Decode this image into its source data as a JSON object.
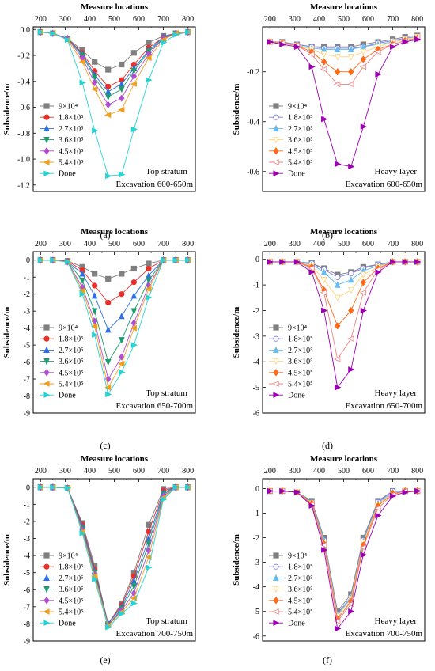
{
  "colors": {
    "9e4": "#808080",
    "1.8e5": "#e8302a",
    "2.7e5": "#2f6fe0",
    "3.6e5": "#1e9c6e",
    "4.5e5": "#b04fcf",
    "5.4e5": "#f0a020",
    "Done": "#27d3d3",
    "4.5e5_b": "#ff6b18",
    "5.4e5_b": "#f08080",
    "Done_b": "#9b00b0",
    "3.6e5_b": "#ffd27a",
    "1.8e5_b": "#7a7adf",
    "2.7e5_b": "#66bbf0"
  },
  "legend_labels": [
    "9×10⁴",
    "1.8×10⁵",
    "2.7×10⁵",
    "3.6×10⁵",
    "4.5×10⁵",
    "5.4×10⁵",
    "Done"
  ],
  "captions": [
    "(a)",
    "(b)",
    "(c)",
    "(d)",
    "(e)",
    "(f)"
  ],
  "chart_data": [
    {
      "type": "line",
      "panel": "a",
      "xlabel": "Measure locations",
      "ylabel": "Subsidence/m",
      "note1": "Top stratum",
      "note2": "Excavation 600-650m",
      "xticks": [
        200,
        300,
        400,
        500,
        600,
        700,
        800
      ],
      "yticks": [
        0.0,
        -0.2,
        -0.4,
        -0.6,
        -0.8,
        -1.0,
        -1.2
      ],
      "xlim": [
        170,
        830
      ],
      "ylim": [
        -1.25,
        0.02
      ],
      "x": [
        200,
        250,
        310,
        370,
        420,
        475,
        530,
        580,
        640,
        700,
        750,
        800
      ],
      "series": [
        {
          "name": "9×10⁴",
          "values": [
            -0.02,
            -0.03,
            -0.07,
            -0.16,
            -0.25,
            -0.31,
            -0.27,
            -0.18,
            -0.1,
            -0.05,
            -0.03,
            -0.02
          ]
        },
        {
          "name": "1.8×10⁵",
          "values": [
            -0.02,
            -0.03,
            -0.07,
            -0.18,
            -0.32,
            -0.44,
            -0.39,
            -0.27,
            -0.14,
            -0.06,
            -0.03,
            -0.02
          ]
        },
        {
          "name": "2.7×10⁵",
          "values": [
            -0.02,
            -0.03,
            -0.07,
            -0.19,
            -0.35,
            -0.48,
            -0.42,
            -0.3,
            -0.16,
            -0.06,
            -0.03,
            -0.02
          ]
        },
        {
          "name": "3.6×10⁵",
          "values": [
            -0.02,
            -0.03,
            -0.07,
            -0.2,
            -0.37,
            -0.52,
            -0.46,
            -0.32,
            -0.17,
            -0.07,
            -0.03,
            -0.02
          ]
        },
        {
          "name": "4.5×10⁵",
          "values": [
            -0.02,
            -0.03,
            -0.07,
            -0.22,
            -0.41,
            -0.58,
            -0.53,
            -0.36,
            -0.19,
            -0.07,
            -0.03,
            -0.02
          ]
        },
        {
          "name": "5.4×10⁵",
          "values": [
            -0.02,
            -0.03,
            -0.08,
            -0.25,
            -0.46,
            -0.66,
            -0.62,
            -0.42,
            -0.22,
            -0.08,
            -0.03,
            -0.02
          ]
        },
        {
          "name": "Done",
          "values": [
            -0.02,
            -0.03,
            -0.08,
            -0.41,
            -0.78,
            -1.13,
            -1.12,
            -0.77,
            -0.39,
            -0.1,
            -0.04,
            -0.02
          ]
        }
      ]
    },
    {
      "type": "line",
      "panel": "b",
      "xlabel": "Measure locations",
      "ylabel": "Subsidence/m",
      "note1": "Heavy layer",
      "note2": "Excavation 600-650m",
      "xticks": [
        200,
        300,
        400,
        500,
        600,
        700,
        800
      ],
      "yticks": [
        -0.2,
        -0.4,
        -0.6
      ],
      "xlim": [
        170,
        830
      ],
      "ylim": [
        -0.68,
        -0.02
      ],
      "x": [
        200,
        250,
        310,
        370,
        420,
        475,
        530,
        580,
        640,
        700,
        750,
        800
      ],
      "series": [
        {
          "name": "9×10⁴",
          "values": [
            -0.08,
            -0.08,
            -0.09,
            -0.1,
            -0.1,
            -0.1,
            -0.1,
            -0.09,
            -0.08,
            -0.07,
            -0.06,
            -0.055
          ]
        },
        {
          "name": "1.8×10⁵",
          "values": [
            -0.08,
            -0.085,
            -0.09,
            -0.1,
            -0.105,
            -0.105,
            -0.105,
            -0.1,
            -0.085,
            -0.075,
            -0.065,
            -0.06
          ]
        },
        {
          "name": "2.7×10⁵",
          "values": [
            -0.08,
            -0.085,
            -0.095,
            -0.105,
            -0.11,
            -0.11,
            -0.11,
            -0.1,
            -0.09,
            -0.08,
            -0.07,
            -0.06
          ]
        },
        {
          "name": "3.6×10⁵",
          "values": [
            -0.08,
            -0.085,
            -0.095,
            -0.11,
            -0.13,
            -0.14,
            -0.14,
            -0.12,
            -0.1,
            -0.08,
            -0.07,
            -0.06
          ]
        },
        {
          "name": "4.5×10⁵",
          "values": [
            -0.08,
            -0.085,
            -0.095,
            -0.12,
            -0.16,
            -0.2,
            -0.2,
            -0.15,
            -0.11,
            -0.09,
            -0.075,
            -0.065
          ]
        },
        {
          "name": "5.4×10⁵",
          "values": [
            -0.08,
            -0.085,
            -0.095,
            -0.13,
            -0.19,
            -0.25,
            -0.25,
            -0.18,
            -0.12,
            -0.09,
            -0.075,
            -0.065
          ]
        },
        {
          "name": "Done",
          "values": [
            -0.08,
            -0.09,
            -0.1,
            -0.18,
            -0.39,
            -0.57,
            -0.58,
            -0.42,
            -0.21,
            -0.1,
            -0.08,
            -0.07
          ]
        }
      ]
    },
    {
      "type": "line",
      "panel": "c",
      "xlabel": "Measure locations",
      "ylabel": "Subsidence/m",
      "note1": "Top stratum",
      "note2": "Excavation 650-700m",
      "xticks": [
        200,
        300,
        400,
        500,
        600,
        700,
        800
      ],
      "yticks": [
        0,
        -1,
        -2,
        -3,
        -4,
        -5,
        -6,
        -7,
        -8,
        -9
      ],
      "xlim": [
        170,
        830
      ],
      "ylim": [
        -9,
        0.5
      ],
      "x": [
        200,
        250,
        310,
        370,
        420,
        475,
        530,
        580,
        640,
        700,
        750,
        800
      ],
      "series": [
        {
          "name": "9×10⁴",
          "values": [
            0,
            0,
            -0.05,
            -0.4,
            -0.8,
            -1.1,
            -0.8,
            -0.5,
            -0.2,
            0,
            0,
            0
          ]
        },
        {
          "name": "1.8×10⁵",
          "values": [
            0,
            0,
            -0.05,
            -0.6,
            -1.5,
            -2.5,
            -2.0,
            -1.3,
            -0.5,
            0,
            0,
            0
          ]
        },
        {
          "name": "2.7×10⁵",
          "values": [
            0,
            0,
            -0.1,
            -0.8,
            -2.1,
            -4.1,
            -3.3,
            -2.1,
            -0.9,
            0,
            0,
            0
          ]
        },
        {
          "name": "3.6×10⁵",
          "values": [
            0,
            0,
            -0.1,
            -1.2,
            -3.0,
            -6.0,
            -4.7,
            -3.0,
            -1.2,
            0,
            0,
            0
          ]
        },
        {
          "name": "4.5×10⁵",
          "values": [
            0,
            0,
            -0.1,
            -1.6,
            -3.6,
            -7.0,
            -5.7,
            -3.7,
            -1.5,
            0,
            0,
            0
          ]
        },
        {
          "name": "5.4×10⁵",
          "values": [
            0,
            0,
            -0.1,
            -1.8,
            -3.9,
            -7.5,
            -6.1,
            -4.0,
            -1.7,
            0,
            0,
            0
          ]
        },
        {
          "name": "Done",
          "values": [
            0,
            0,
            -0.1,
            -2.0,
            -4.4,
            -7.9,
            -6.6,
            -5.0,
            -2.2,
            0,
            0,
            0
          ]
        }
      ]
    },
    {
      "type": "line",
      "panel": "d",
      "xlabel": "Measure locations",
      "ylabel": "Subsidence/m",
      "note1": "Heavy layer",
      "note2": "Excavation 650-700m",
      "xticks": [
        200,
        300,
        400,
        500,
        600,
        700,
        800
      ],
      "yticks": [
        0,
        -1,
        -2,
        -3,
        -4,
        -5,
        -6
      ],
      "xlim": [
        170,
        830
      ],
      "ylim": [
        -6,
        0.3
      ],
      "x": [
        200,
        250,
        310,
        370,
        420,
        475,
        530,
        580,
        640,
        700,
        750,
        800
      ],
      "series": [
        {
          "name": "9×10⁴",
          "values": [
            -0.1,
            -0.1,
            -0.1,
            -0.15,
            -0.35,
            -0.6,
            -0.5,
            -0.3,
            -0.2,
            -0.1,
            -0.1,
            -0.1
          ]
        },
        {
          "name": "1.8×10⁵",
          "values": [
            -0.1,
            -0.1,
            -0.1,
            -0.15,
            -0.4,
            -0.7,
            -0.55,
            -0.35,
            -0.2,
            -0.1,
            -0.1,
            -0.1
          ]
        },
        {
          "name": "2.7×10⁵",
          "values": [
            -0.1,
            -0.1,
            -0.1,
            -0.2,
            -0.5,
            -1.0,
            -0.8,
            -0.45,
            -0.25,
            -0.1,
            -0.1,
            -0.1
          ]
        },
        {
          "name": "3.6×10⁵",
          "values": [
            -0.1,
            -0.1,
            -0.1,
            -0.25,
            -0.8,
            -1.5,
            -1.2,
            -0.6,
            -0.3,
            -0.1,
            -0.1,
            -0.1
          ]
        },
        {
          "name": "4.5×10⁵",
          "values": [
            -0.1,
            -0.1,
            -0.1,
            -0.3,
            -1.2,
            -2.6,
            -2.0,
            -0.9,
            -0.35,
            -0.1,
            -0.1,
            -0.1
          ]
        },
        {
          "name": "5.4×10⁵",
          "values": [
            -0.1,
            -0.1,
            -0.1,
            -0.35,
            -1.3,
            -3.9,
            -3.1,
            -1.3,
            -0.4,
            -0.1,
            -0.1,
            -0.1
          ]
        },
        {
          "name": "Done",
          "values": [
            -0.1,
            -0.1,
            -0.1,
            -0.5,
            -2.0,
            -5.0,
            -4.3,
            -2.0,
            -0.5,
            -0.1,
            -0.1,
            -0.1
          ]
        }
      ]
    },
    {
      "type": "line",
      "panel": "e",
      "xlabel": "Measure locations",
      "ylabel": "Subsidence/m",
      "note1": "Top stratum",
      "note2": "Excavation 700-750m",
      "xticks": [
        200,
        300,
        400,
        500,
        600,
        700,
        800
      ],
      "yticks": [
        0,
        -1,
        -2,
        -3,
        -4,
        -5,
        -6,
        -7,
        -8,
        -9
      ],
      "xlim": [
        170,
        830
      ],
      "ylim": [
        -9,
        0.5
      ],
      "x": [
        200,
        250,
        310,
        370,
        420,
        475,
        530,
        580,
        640,
        700,
        750,
        800
      ],
      "series": [
        {
          "name": "9×10⁴",
          "values": [
            0,
            0,
            -0.05,
            -2.1,
            -4.6,
            -8.0,
            -6.8,
            -5.0,
            -2.2,
            -0.1,
            0,
            0
          ]
        },
        {
          "name": "1.8×10⁵",
          "values": [
            0,
            0,
            -0.05,
            -2.2,
            -4.8,
            -8.0,
            -6.9,
            -5.2,
            -2.6,
            -0.2,
            0,
            0
          ]
        },
        {
          "name": "2.7×10⁵",
          "values": [
            0,
            0,
            -0.05,
            -2.3,
            -4.9,
            -8.0,
            -7.0,
            -5.5,
            -3.0,
            -0.3,
            0,
            0
          ]
        },
        {
          "name": "3.6×10⁵",
          "values": [
            0,
            0,
            -0.05,
            -2.4,
            -5.0,
            -8.1,
            -7.1,
            -5.8,
            -3.3,
            -0.4,
            0,
            0
          ]
        },
        {
          "name": "4.5×10⁵",
          "values": [
            0,
            0,
            -0.05,
            -2.5,
            -5.1,
            -8.1,
            -7.2,
            -6.2,
            -3.7,
            -0.5,
            0,
            0
          ]
        },
        {
          "name": "5.4×10⁵",
          "values": [
            0,
            0,
            -0.05,
            -2.6,
            -5.2,
            -8.1,
            -7.3,
            -6.5,
            -4.1,
            -0.6,
            0,
            0
          ]
        },
        {
          "name": "Done",
          "values": [
            0,
            0,
            -0.05,
            -2.7,
            -5.4,
            -8.2,
            -7.4,
            -6.8,
            -4.7,
            -0.7,
            0,
            0
          ]
        }
      ]
    },
    {
      "type": "line",
      "panel": "f",
      "xlabel": "Measure locations",
      "ylabel": "Subsidence/m",
      "note1": "Heavy layer",
      "note2": "Excavation 700-750m",
      "xticks": [
        200,
        300,
        400,
        500,
        600,
        700,
        800
      ],
      "yticks": [
        0,
        -1,
        -2,
        -3,
        -4,
        -5,
        -6
      ],
      "xlim": [
        170,
        830
      ],
      "ylim": [
        -6.2,
        0.4
      ],
      "x": [
        200,
        250,
        310,
        370,
        420,
        475,
        530,
        580,
        640,
        700,
        750,
        800
      ],
      "series": [
        {
          "name": "9×10⁴",
          "values": [
            -0.1,
            -0.1,
            -0.15,
            -0.5,
            -2.0,
            -5.0,
            -4.3,
            -2.0,
            -0.5,
            -0.1,
            -0.1,
            -0.1
          ]
        },
        {
          "name": "1.8×10⁵",
          "values": [
            -0.1,
            -0.1,
            -0.15,
            -0.55,
            -2.1,
            -5.1,
            -4.4,
            -2.1,
            -0.55,
            -0.1,
            -0.1,
            -0.1
          ]
        },
        {
          "name": "2.7×10⁵",
          "values": [
            -0.1,
            -0.1,
            -0.15,
            -0.55,
            -2.1,
            -5.15,
            -4.45,
            -2.15,
            -0.6,
            -0.15,
            -0.1,
            -0.1
          ]
        },
        {
          "name": "3.6×10⁵",
          "values": [
            -0.1,
            -0.1,
            -0.15,
            -0.6,
            -2.2,
            -5.2,
            -4.5,
            -2.2,
            -0.65,
            -0.2,
            -0.1,
            -0.1
          ]
        },
        {
          "name": "4.5×10⁵",
          "values": [
            -0.1,
            -0.1,
            -0.15,
            -0.6,
            -2.25,
            -5.3,
            -4.6,
            -2.3,
            -0.7,
            -0.2,
            -0.1,
            -0.1
          ]
        },
        {
          "name": "5.4×10⁵",
          "values": [
            -0.1,
            -0.1,
            -0.15,
            -0.65,
            -2.3,
            -5.4,
            -4.7,
            -2.4,
            -0.8,
            -0.25,
            -0.1,
            -0.1
          ]
        },
        {
          "name": "Done",
          "values": [
            -0.1,
            -0.1,
            -0.15,
            -0.7,
            -2.5,
            -5.7,
            -5.0,
            -2.7,
            -1.1,
            -0.3,
            -0.15,
            -0.1
          ]
        }
      ]
    }
  ]
}
